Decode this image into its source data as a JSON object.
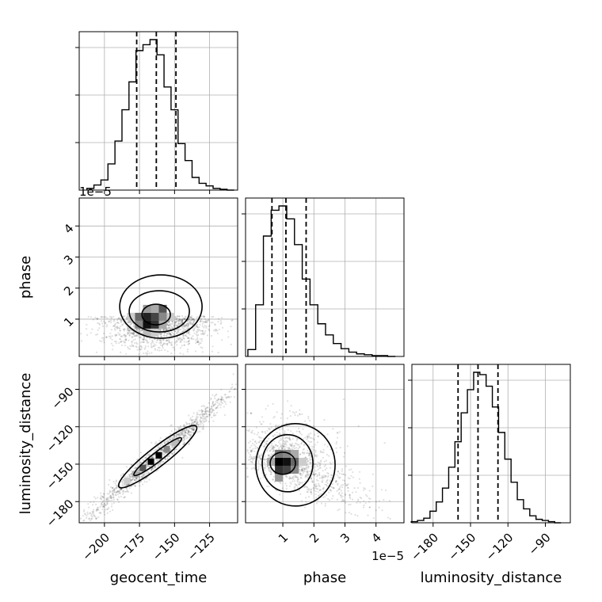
{
  "chart_data": {
    "type": "corner",
    "grid": true,
    "parameters": [
      "geocent_time",
      "phase",
      "luminosity_distance"
    ],
    "panels": {
      "hist_geocent_time": {
        "type": "histogram",
        "xlim": [
          -218,
          -105
        ],
        "x": [
          -210,
          -205,
          -200,
          -195,
          -190,
          -185,
          -180,
          -175,
          -170,
          -165,
          -160,
          -155,
          -150,
          -145,
          -140,
          -135,
          -130,
          -125,
          -120,
          -115,
          -110
        ],
        "counts": [
          2,
          6,
          12,
          31,
          58,
          95,
          128,
          165,
          172,
          178,
          160,
          122,
          95,
          55,
          35,
          15,
          8,
          5,
          2,
          1,
          0
        ],
        "quantiles": [
          -177,
          -163,
          -149
        ]
      },
      "hist_phase": {
        "type": "histogram",
        "x_scale": "1e-5",
        "xlim": [
          -0.2,
          4.9
        ],
        "x": [
          0.0,
          0.25,
          0.5,
          0.75,
          1.0,
          1.25,
          1.5,
          1.75,
          2.0,
          2.25,
          2.5,
          2.75,
          3.0,
          3.25,
          3.5,
          3.75,
          4.0,
          4.25,
          4.5
        ],
        "counts": [
          8,
          60,
          140,
          170,
          175,
          160,
          130,
          90,
          60,
          38,
          25,
          15,
          9,
          5,
          3,
          2,
          1,
          1,
          0
        ],
        "quantiles": [
          0.65,
          1.1,
          1.75
        ]
      },
      "hist_luminosity_distance": {
        "type": "histogram",
        "xlim": [
          -197,
          -70
        ],
        "x": [
          -195,
          -190,
          -185,
          -180,
          -175,
          -170,
          -165,
          -160,
          -155,
          -150,
          -145,
          -140,
          -135,
          -130,
          -125,
          -120,
          -115,
          -110,
          -105,
          -100,
          -95,
          -90,
          -85,
          -80
        ],
        "counts": [
          1,
          2,
          4,
          10,
          18,
          30,
          48,
          70,
          95,
          115,
          130,
          128,
          118,
          100,
          78,
          55,
          35,
          20,
          12,
          6,
          3,
          2,
          1,
          0
        ],
        "quantiles": [
          -160,
          -144,
          -128
        ]
      },
      "scatter_geocent_time_vs_phase": {
        "type": "density_scatter",
        "x_param": "geocent_time",
        "y_param": "phase",
        "y_scale": "1e-5",
        "xlim": [
          -218,
          -105
        ],
        "ylim": [
          -0.2,
          4.9
        ],
        "center": [
          -162,
          1.1
        ],
        "peak": [
          -168,
          0.95
        ]
      },
      "scatter_geocent_time_vs_luminosity_distance": {
        "type": "density_scatter",
        "x_param": "geocent_time",
        "y_param": "luminosity_distance",
        "xlim": [
          -218,
          -105
        ],
        "ylim": [
          -197,
          -70
        ],
        "center": [
          -162,
          -144
        ],
        "peak": [
          -168,
          -148
        ]
      },
      "scatter_phase_vs_luminosity_distance": {
        "type": "density_scatter",
        "x_param": "phase",
        "y_param": "luminosity_distance",
        "x_scale": "1e-5",
        "xlim": [
          -0.2,
          4.9
        ],
        "ylim": [
          -197,
          -70
        ],
        "center": [
          1.0,
          -148
        ],
        "peak": [
          0.95,
          -150
        ]
      }
    },
    "axes": {
      "geocent_time": {
        "label": "geocent_time",
        "ticks": [
          -200,
          -175,
          -150,
          -125
        ],
        "tick_labels": [
          "−200",
          "−175",
          "−150",
          "−125"
        ]
      },
      "phase": {
        "label": "phase",
        "scale_label": "1e−5",
        "ticks": [
          1,
          2,
          3,
          4
        ],
        "tick_labels": [
          "1",
          "2",
          "3",
          "4"
        ]
      },
      "luminosity_distance": {
        "label": "luminosity_distance",
        "ticks": [
          -180,
          -150,
          -120,
          -90
        ],
        "tick_labels": [
          "−180",
          "−150",
          "−120",
          "−90"
        ]
      }
    }
  }
}
